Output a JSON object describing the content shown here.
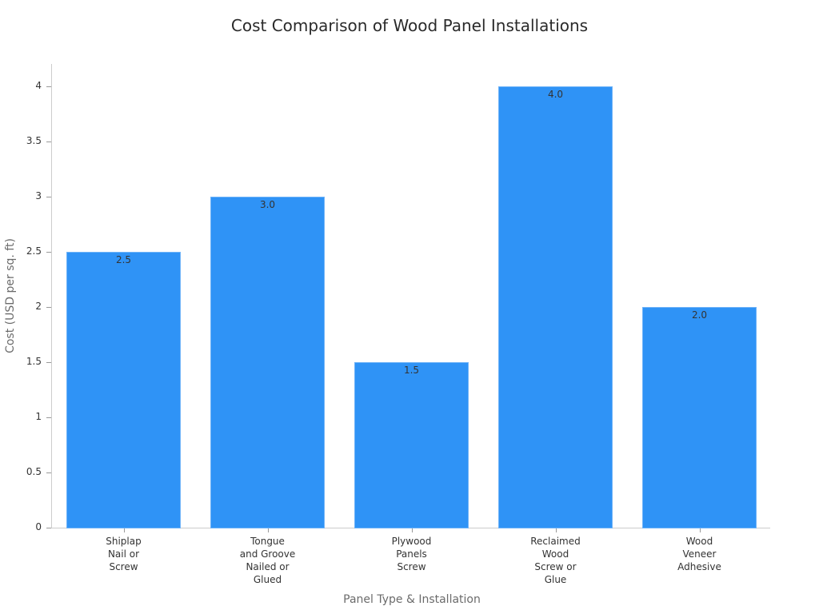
{
  "chart_data": {
    "type": "bar",
    "title": "Cost Comparison of Wood Panel Installations",
    "xlabel": "Panel Type & Installation",
    "ylabel": "Cost (USD per sq. ft)",
    "categories": [
      "Shiplap\nNail or\nScrew",
      "Tongue\nand Groove\nNailed or\nGlued",
      "Plywood\nPanels\nScrew",
      "Reclaimed\nWood\nScrew or\nGlue",
      "Wood\nVeneer\nAdhesive"
    ],
    "values": [
      2.5,
      3.0,
      1.5,
      4.0,
      2.0
    ],
    "data_labels": [
      "2.5",
      "3.0",
      "1.5",
      "4.0",
      "2.0"
    ],
    "ylim": [
      0,
      4.2
    ],
    "yticks": [
      "0",
      "0.5",
      "1",
      "1.5",
      "2",
      "2.5",
      "3",
      "3.5",
      "4"
    ],
    "grid": false,
    "legend": null,
    "bar_color": "#2f93f6"
  }
}
